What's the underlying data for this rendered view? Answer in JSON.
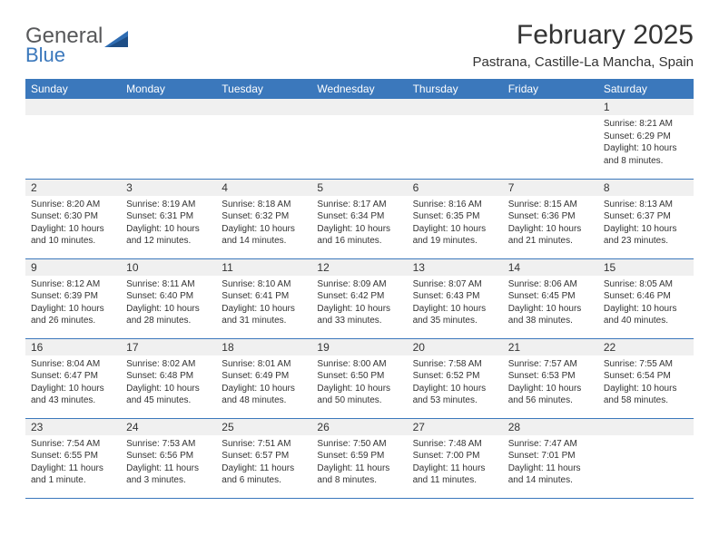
{
  "logo": {
    "general": "General",
    "blue": "Blue"
  },
  "title": "February 2025",
  "location": "Pastrana, Castille-La Mancha, Spain",
  "weekday_header": {
    "bg": "#3b78bc",
    "fg": "#ffffff",
    "days": [
      "Sunday",
      "Monday",
      "Tuesday",
      "Wednesday",
      "Thursday",
      "Friday",
      "Saturday"
    ]
  },
  "colors": {
    "daynum_bg": "#f0f0f0",
    "cell_border": "#3b78bc",
    "text": "#333333",
    "logo_gray": "#57585a",
    "logo_blue": "#3b78bc",
    "page_bg": "#ffffff"
  },
  "grid": {
    "rows": 5,
    "cols": 7,
    "cells": [
      [
        {
          "blank": true
        },
        {
          "blank": true
        },
        {
          "blank": true
        },
        {
          "blank": true
        },
        {
          "blank": true
        },
        {
          "blank": true
        },
        {
          "day": "1",
          "sunrise": "Sunrise: 8:21 AM",
          "sunset": "Sunset: 6:29 PM",
          "daylight": "Daylight: 10 hours and 8 minutes."
        }
      ],
      [
        {
          "day": "2",
          "sunrise": "Sunrise: 8:20 AM",
          "sunset": "Sunset: 6:30 PM",
          "daylight": "Daylight: 10 hours and 10 minutes."
        },
        {
          "day": "3",
          "sunrise": "Sunrise: 8:19 AM",
          "sunset": "Sunset: 6:31 PM",
          "daylight": "Daylight: 10 hours and 12 minutes."
        },
        {
          "day": "4",
          "sunrise": "Sunrise: 8:18 AM",
          "sunset": "Sunset: 6:32 PM",
          "daylight": "Daylight: 10 hours and 14 minutes."
        },
        {
          "day": "5",
          "sunrise": "Sunrise: 8:17 AM",
          "sunset": "Sunset: 6:34 PM",
          "daylight": "Daylight: 10 hours and 16 minutes."
        },
        {
          "day": "6",
          "sunrise": "Sunrise: 8:16 AM",
          "sunset": "Sunset: 6:35 PM",
          "daylight": "Daylight: 10 hours and 19 minutes."
        },
        {
          "day": "7",
          "sunrise": "Sunrise: 8:15 AM",
          "sunset": "Sunset: 6:36 PM",
          "daylight": "Daylight: 10 hours and 21 minutes."
        },
        {
          "day": "8",
          "sunrise": "Sunrise: 8:13 AM",
          "sunset": "Sunset: 6:37 PM",
          "daylight": "Daylight: 10 hours and 23 minutes."
        }
      ],
      [
        {
          "day": "9",
          "sunrise": "Sunrise: 8:12 AM",
          "sunset": "Sunset: 6:39 PM",
          "daylight": "Daylight: 10 hours and 26 minutes."
        },
        {
          "day": "10",
          "sunrise": "Sunrise: 8:11 AM",
          "sunset": "Sunset: 6:40 PM",
          "daylight": "Daylight: 10 hours and 28 minutes."
        },
        {
          "day": "11",
          "sunrise": "Sunrise: 8:10 AM",
          "sunset": "Sunset: 6:41 PM",
          "daylight": "Daylight: 10 hours and 31 minutes."
        },
        {
          "day": "12",
          "sunrise": "Sunrise: 8:09 AM",
          "sunset": "Sunset: 6:42 PM",
          "daylight": "Daylight: 10 hours and 33 minutes."
        },
        {
          "day": "13",
          "sunrise": "Sunrise: 8:07 AM",
          "sunset": "Sunset: 6:43 PM",
          "daylight": "Daylight: 10 hours and 35 minutes."
        },
        {
          "day": "14",
          "sunrise": "Sunrise: 8:06 AM",
          "sunset": "Sunset: 6:45 PM",
          "daylight": "Daylight: 10 hours and 38 minutes."
        },
        {
          "day": "15",
          "sunrise": "Sunrise: 8:05 AM",
          "sunset": "Sunset: 6:46 PM",
          "daylight": "Daylight: 10 hours and 40 minutes."
        }
      ],
      [
        {
          "day": "16",
          "sunrise": "Sunrise: 8:04 AM",
          "sunset": "Sunset: 6:47 PM",
          "daylight": "Daylight: 10 hours and 43 minutes."
        },
        {
          "day": "17",
          "sunrise": "Sunrise: 8:02 AM",
          "sunset": "Sunset: 6:48 PM",
          "daylight": "Daylight: 10 hours and 45 minutes."
        },
        {
          "day": "18",
          "sunrise": "Sunrise: 8:01 AM",
          "sunset": "Sunset: 6:49 PM",
          "daylight": "Daylight: 10 hours and 48 minutes."
        },
        {
          "day": "19",
          "sunrise": "Sunrise: 8:00 AM",
          "sunset": "Sunset: 6:50 PM",
          "daylight": "Daylight: 10 hours and 50 minutes."
        },
        {
          "day": "20",
          "sunrise": "Sunrise: 7:58 AM",
          "sunset": "Sunset: 6:52 PM",
          "daylight": "Daylight: 10 hours and 53 minutes."
        },
        {
          "day": "21",
          "sunrise": "Sunrise: 7:57 AM",
          "sunset": "Sunset: 6:53 PM",
          "daylight": "Daylight: 10 hours and 56 minutes."
        },
        {
          "day": "22",
          "sunrise": "Sunrise: 7:55 AM",
          "sunset": "Sunset: 6:54 PM",
          "daylight": "Daylight: 10 hours and 58 minutes."
        }
      ],
      [
        {
          "day": "23",
          "sunrise": "Sunrise: 7:54 AM",
          "sunset": "Sunset: 6:55 PM",
          "daylight": "Daylight: 11 hours and 1 minute."
        },
        {
          "day": "24",
          "sunrise": "Sunrise: 7:53 AM",
          "sunset": "Sunset: 6:56 PM",
          "daylight": "Daylight: 11 hours and 3 minutes."
        },
        {
          "day": "25",
          "sunrise": "Sunrise: 7:51 AM",
          "sunset": "Sunset: 6:57 PM",
          "daylight": "Daylight: 11 hours and 6 minutes."
        },
        {
          "day": "26",
          "sunrise": "Sunrise: 7:50 AM",
          "sunset": "Sunset: 6:59 PM",
          "daylight": "Daylight: 11 hours and 8 minutes."
        },
        {
          "day": "27",
          "sunrise": "Sunrise: 7:48 AM",
          "sunset": "Sunset: 7:00 PM",
          "daylight": "Daylight: 11 hours and 11 minutes."
        },
        {
          "day": "28",
          "sunrise": "Sunrise: 7:47 AM",
          "sunset": "Sunset: 7:01 PM",
          "daylight": "Daylight: 11 hours and 14 minutes."
        },
        {
          "blank": true
        }
      ]
    ]
  }
}
